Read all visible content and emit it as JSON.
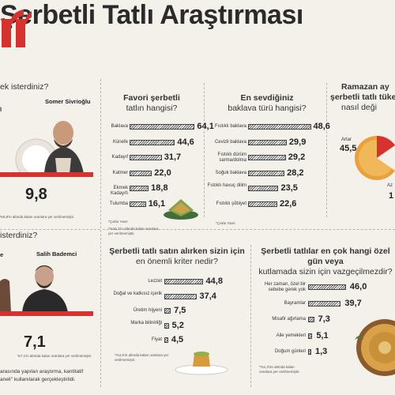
{
  "header": {
    "title": "Şerbetli Tatlı Araştırması"
  },
  "left": {
    "q1_fragment": "ek isterdiniz?",
    "person_a_name": "Somer Sivrioğlu",
    "person_a_prefix": "l",
    "score1": "9,8",
    "note1": "%9,8'in altında kalan oranlara yer verilmemiştir.",
    "q2_fragment": "isterdiniz?",
    "person_b_prefix": "e",
    "person_b_name": "Salih Bademci",
    "score2": "7,1",
    "note2": "%7,1'in altında kalan oranlara yer verilmemiştir.",
    "bottom_line1": "arasında yapılan araştırma, kantitatif",
    "bottom_line2": "aneli\" kullanılarak gerçekleştirildi."
  },
  "favorite": {
    "title_bold": "Favori şerbetli",
    "title_rest": "tatlın hangisi?",
    "note_a": "*Çoklu Yanıt",
    "note_b": "*%16,1'in altında kalan oranlara yer verilmemiştir."
  },
  "baklava": {
    "title_bold": "En sevdiğiniz",
    "title_rest": "baklava türü hangisi?",
    "note": "*Çoklu Yanıt"
  },
  "ramazan": {
    "title_line1": "Ramazan ay",
    "title_line2": "şerbetli tatlı tüket",
    "title_line3": "nasıl deği",
    "slice_a_label": "Artar",
    "slice_a_value": "45,5",
    "slice_b_label": "Az",
    "slice_b_value": "1"
  },
  "criteria": {
    "title_bold": "Şerbetli tatlı satın alırken sizin için",
    "title_rest": "en önemli kriter nedir?",
    "note": "*%4,5'in altında kalan oranlara yer verilmemiştir."
  },
  "special": {
    "title_bold": "Şerbetli tatlılar en çok hangi özel gün veya",
    "title_rest": "kutlamada sizin için vazgeçilmezdir?",
    "note": "*%1,3'ün altında kalan oranlara yer verilmemiştir."
  },
  "chart_data": [
    {
      "type": "bar",
      "title": "Favori şerbetli tatlın hangisi?",
      "categories": [
        "Baklava",
        "Künefe",
        "Kadayıf",
        "Katmer",
        "Ekmek Kadayıfı",
        "Tulumba"
      ],
      "values": [
        64.1,
        44.6,
        31.7,
        22.0,
        18.8,
        16.1
      ],
      "labels": [
        "64,1",
        "44,6",
        "31,7",
        "22,0",
        "18,8",
        "16,1"
      ]
    },
    {
      "type": "bar",
      "title": "En sevdiğiniz baklava türü hangisi?",
      "categories": [
        "Fıstıklı baklava",
        "Cevizli baklava",
        "Fıstıklı dürüm sarma/dolma",
        "Soğuk baklava",
        "Fıstıklı havuç dilim",
        "Fıstıklı şöbiyet"
      ],
      "values": [
        48.6,
        29.9,
        29.2,
        28.2,
        23.5,
        22.6
      ],
      "labels": [
        "48,6",
        "29,9",
        "29,2",
        "28,2",
        "23,5",
        "22,6"
      ]
    },
    {
      "type": "bar",
      "title": "Şerbetli tatlı satın alırken sizin için en önemli kriter nedir?",
      "categories": [
        "Lezzet",
        "Doğal ve katkısız içerik",
        "Üretim hijyeni",
        "Marka bilinirliği",
        "Fiyat"
      ],
      "values": [
        44.8,
        37.4,
        7.5,
        5.2,
        4.5
      ],
      "labels": [
        "44,8",
        "37,4",
        "7,5",
        "5,2",
        "4,5"
      ]
    },
    {
      "type": "bar",
      "title": "Şerbetli tatlılar en çok hangi özel gün veya kutlamada sizin için vazgeçilmezdir?",
      "categories": [
        "Her zaman, özel bir sebebe gerek yok",
        "Bayramlar",
        "Misafir ağırlama",
        "Aile yemekleri",
        "Doğum günleri"
      ],
      "values": [
        46.0,
        39.7,
        7.3,
        5.1,
        1.3
      ],
      "labels": [
        "46,0",
        "39,7",
        "7,3",
        "5,1",
        "1,3"
      ]
    }
  ],
  "colors": {
    "accent": "#d6322f",
    "background": "#f4f1ea"
  }
}
